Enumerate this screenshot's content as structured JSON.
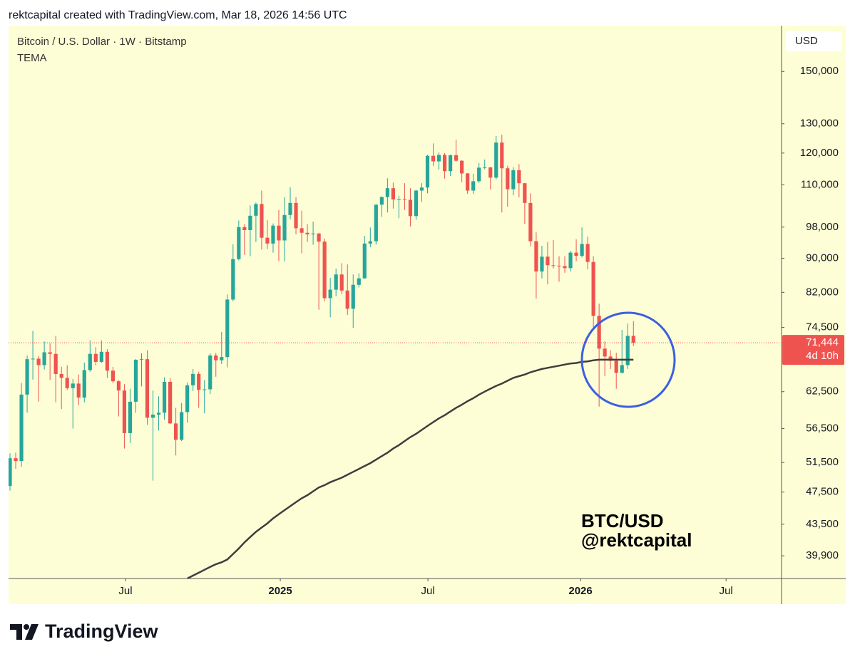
{
  "header": {
    "credit": "rektcapital created with TradingView.com, Mar 18, 2026 14:56 UTC"
  },
  "chart_data": {
    "type": "candlestick",
    "title": "Bitcoin / U.S. Dollar · 1W · Bitstamp",
    "currency": "USD",
    "log_scale": true,
    "grid": false,
    "up_color": "#26a69a",
    "down_color": "#ef5350",
    "categories": [
      null,
      null,
      null,
      null,
      null,
      null,
      null,
      null,
      null,
      null,
      null,
      null,
      null,
      null,
      null,
      null,
      null,
      null,
      null,
      null,
      null,
      null,
      null,
      null,
      null,
      null,
      null,
      null,
      null,
      null,
      null,
      null,
      null,
      null,
      null,
      null,
      null,
      null,
      null,
      null,
      null,
      null,
      null,
      null,
      null,
      null,
      null,
      null,
      null,
      null,
      null,
      null,
      null,
      null,
      null,
      null,
      null,
      null,
      null,
      null,
      null,
      null,
      null,
      null,
      null,
      null,
      null,
      null,
      null,
      null,
      null,
      null,
      null,
      null,
      null,
      null,
      null,
      null,
      null,
      null,
      null,
      null,
      null,
      null,
      null,
      null,
      null,
      null,
      null,
      null,
      null,
      null,
      null,
      null,
      null,
      null,
      null,
      null,
      null,
      null,
      null,
      null,
      null,
      null,
      null,
      null,
      null,
      null,
      null,
      null
    ],
    "open": [
      48300,
      52100,
      51700,
      62000,
      68300,
      68400,
      67200,
      69600,
      69300,
      65600,
      64900,
      63100,
      63900,
      61500,
      66300,
      69300,
      67800,
      69700,
      66200,
      64300,
      62700,
      55800,
      60800,
      68200,
      68300,
      58200,
      58700,
      59000,
      64200,
      57300,
      54800,
      59100,
      63600,
      65600,
      62800,
      62900,
      69000,
      68100,
      68700,
      80400,
      89800,
      98000,
      97200,
      101100,
      104400,
      95200,
      93700,
      98400,
      94500,
      101300,
      104700,
      97700,
      96500,
      96100,
      96300,
      94200,
      80700,
      82600,
      86100,
      82400,
      78400,
      83700,
      85200,
      93700,
      94300,
      104200,
      106400,
      109000,
      105700,
      105800,
      105600,
      101000,
      108300,
      109200,
      119100,
      117300,
      119400,
      114200,
      119300,
      117500,
      113500,
      108300,
      111100,
      115300,
      115400,
      112200,
      123500,
      115100,
      108700,
      114500,
      110500,
      104700,
      94300,
      86800,
      90400,
      88300,
      88200,
      88100,
      87600,
      91400,
      90600,
      93600,
      89100,
      76900,
      70300,
      68800,
      68000,
      65800,
      67200,
      72800
    ],
    "high": [
      52800,
      52900,
      64000,
      69000,
      73800,
      68900,
      71700,
      71300,
      72800,
      66900,
      67200,
      64700,
      65500,
      67700,
      71900,
      70600,
      71900,
      70200,
      66900,
      64500,
      63800,
      63000,
      68300,
      69400,
      70000,
      62700,
      61700,
      65000,
      64900,
      59800,
      60600,
      64100,
      66500,
      66000,
      64500,
      69400,
      69500,
      73600,
      81500,
      93500,
      99800,
      98800,
      104000,
      104800,
      108300,
      99900,
      99000,
      102700,
      106400,
      109300,
      106400,
      102500,
      98800,
      99500,
      96500,
      95000,
      85300,
      87500,
      88800,
      88500,
      86100,
      86400,
      95700,
      97900,
      104300,
      106600,
      112000,
      110700,
      106800,
      110500,
      109000,
      108500,
      110500,
      119400,
      123200,
      120200,
      120000,
      119500,
      124500,
      117700,
      113600,
      113400,
      116800,
      117900,
      115500,
      125700,
      126200,
      115900,
      115500,
      116400,
      110600,
      107500,
      96600,
      93100,
      94100,
      94600,
      90500,
      90500,
      91900,
      94800,
      97900,
      95500,
      90500,
      79500,
      71700,
      70000,
      69500,
      74000,
      75300,
      75800
    ],
    "low": [
      47700,
      50600,
      50900,
      59000,
      64600,
      60800,
      66400,
      64500,
      60700,
      59600,
      62800,
      56500,
      60200,
      60700,
      66000,
      67200,
      67600,
      64900,
      64000,
      58400,
      53500,
      54300,
      59000,
      63400,
      57100,
      49000,
      56200,
      57900,
      57200,
      52500,
      54600,
      57400,
      62600,
      59800,
      58900,
      62100,
      65100,
      67400,
      66800,
      80000,
      89500,
      90800,
      90500,
      94100,
      92200,
      92300,
      91400,
      89300,
      89200,
      100100,
      96100,
      91200,
      94100,
      93400,
      78200,
      80000,
      76600,
      81100,
      81600,
      77100,
      74400,
      83100,
      85100,
      92800,
      93400,
      100800,
      102000,
      103100,
      100400,
      102700,
      98200,
      100000,
      105000,
      107500,
      115800,
      114700,
      111900,
      112700,
      117200,
      110800,
      107300,
      107300,
      110600,
      114800,
      108600,
      111600,
      102000,
      103600,
      106900,
      106300,
      98900,
      93000,
      80600,
      85200,
      83800,
      87500,
      84400,
      86500,
      86800,
      89300,
      90200,
      87300,
      74500,
      60000,
      65200,
      66500,
      63000,
      65700,
      66500,
      70800
    ],
    "close": [
      52100,
      51700,
      62000,
      68300,
      68400,
      67200,
      69600,
      69300,
      65600,
      64900,
      63100,
      63900,
      61500,
      66300,
      69300,
      67800,
      69700,
      66200,
      64300,
      62700,
      55800,
      60800,
      68200,
      68300,
      58200,
      58700,
      59000,
      64200,
      57300,
      54800,
      59100,
      63600,
      65600,
      62800,
      62900,
      69000,
      68100,
      68700,
      80400,
      89800,
      98000,
      97200,
      101100,
      104400,
      95200,
      93700,
      98400,
      94500,
      101300,
      104700,
      97700,
      96500,
      96100,
      96300,
      94200,
      80700,
      82600,
      86100,
      82400,
      78400,
      83700,
      85200,
      93700,
      94300,
      104200,
      106400,
      109000,
      105700,
      105800,
      105600,
      101000,
      108300,
      109200,
      119100,
      117300,
      119400,
      114200,
      119300,
      117500,
      113500,
      108300,
      111100,
      115300,
      115400,
      112200,
      123500,
      115100,
      108700,
      114500,
      110500,
      104700,
      94300,
      86800,
      90400,
      88300,
      88200,
      88100,
      87600,
      91400,
      90600,
      93600,
      89100,
      76900,
      70300,
      68800,
      68000,
      65800,
      67200,
      72800,
      71444
    ],
    "tema": {
      "name": "TEMA",
      "color": "#3d3d3d",
      "values": [
        null,
        null,
        null,
        null,
        null,
        null,
        null,
        null,
        null,
        null,
        null,
        null,
        null,
        null,
        null,
        null,
        null,
        null,
        null,
        null,
        null,
        null,
        null,
        null,
        null,
        null,
        null,
        null,
        null,
        null,
        null,
        37500,
        37800,
        38100,
        38400,
        38700,
        39000,
        39200,
        39500,
        40100,
        40700,
        41400,
        42000,
        42600,
        43100,
        43600,
        44200,
        44700,
        45200,
        45700,
        46200,
        46700,
        47100,
        47600,
        48100,
        48400,
        48800,
        49100,
        49400,
        49800,
        50200,
        50600,
        51000,
        51400,
        51900,
        52400,
        52900,
        53500,
        54000,
        54600,
        55200,
        55700,
        56300,
        56900,
        57500,
        58100,
        58600,
        59200,
        59800,
        60300,
        60900,
        61400,
        62000,
        62500,
        63000,
        63500,
        63900,
        64400,
        64900,
        65200,
        65500,
        65900,
        66200,
        66500,
        66700,
        66900,
        67100,
        67300,
        67500,
        67600,
        67800,
        67900,
        68100,
        68200,
        68200,
        68200,
        68200,
        68200,
        68200,
        68200
      ]
    },
    "current_price": {
      "value": 71444,
      "label": "71,444",
      "countdown": "4d 10h",
      "color": "#ef5350"
    },
    "ylim": [
      37500,
      170000
    ],
    "yticks": [
      {
        "value": 150000,
        "label": "150,000"
      },
      {
        "value": 130000,
        "label": "130,000"
      },
      {
        "value": 120000,
        "label": "120,000"
      },
      {
        "value": 110000,
        "label": "110,000"
      },
      {
        "value": 98000,
        "label": "98,000"
      },
      {
        "value": 90000,
        "label": "90,000"
      },
      {
        "value": 82000,
        "label": "82,000"
      },
      {
        "value": 74500,
        "label": "74,500"
      },
      {
        "value": 62500,
        "label": "62,500"
      },
      {
        "value": 56500,
        "label": "56,500"
      },
      {
        "value": 51500,
        "label": "51,500"
      },
      {
        "value": 47500,
        "label": "47,500"
      },
      {
        "value": 43500,
        "label": "43,500"
      },
      {
        "value": 39900,
        "label": "39,900"
      }
    ],
    "xlim": [
      -0.25,
      134.9
    ],
    "xticks": [
      {
        "value": 20.2,
        "label": "Jul"
      },
      {
        "value": 47.26,
        "label": "2025"
      },
      {
        "value": 73.07,
        "label": "Jul"
      },
      {
        "value": 99.75,
        "label": "2026"
      },
      {
        "value": 125.2,
        "label": "Jul"
      }
    ],
    "watermark": [
      "BTC/USD",
      "@rektcapital"
    ]
  },
  "footer": {
    "brand": "TradingView"
  }
}
